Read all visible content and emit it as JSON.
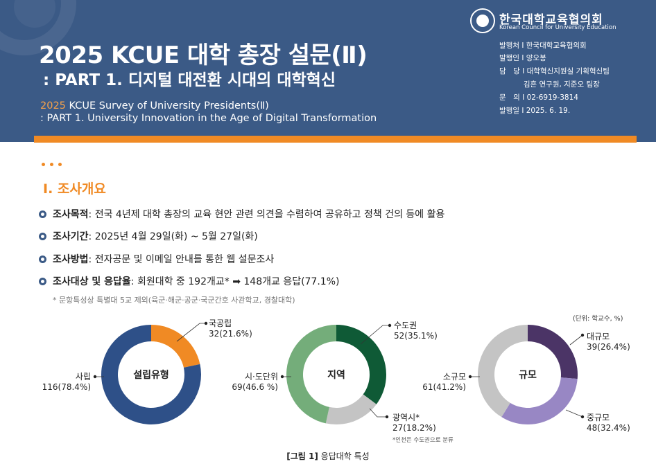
{
  "header": {
    "title_main": "2025 KCUE 대학 총장 설문(Ⅱ)",
    "title_sub": ": PART 1. 디지털 대전환 시대의 대학혁신",
    "en_year": "2025",
    "en_line1_rest": " KCUE Survey of University Presidents(Ⅱ)",
    "en_line2": ": PART 1. University Innovation in the Age of Digital Transformation",
    "org_ko": "한국대학교육협의회",
    "org_en": "Korean Council for University Education",
    "meta": [
      "발행처 I 한국대학교육협의회",
      "발행인 I 양오봉",
      "담　당 I 대학혁신지원실 기획혁신팀",
      "　　　 김흔 연구원, 지준오 팀장",
      "문　의 I 02-6919-3814",
      "발행일 I 2025. 6. 19."
    ]
  },
  "section": {
    "title": "Ⅰ. 조사개요",
    "bullets": [
      {
        "label": "조사목적",
        "text": " : 전국 4년제 대학 총장의 교육 현안 관련 의견을 수렴하여 공유하고 정책 건의 등에 활용"
      },
      {
        "label": "조사기간",
        "text": " : 2025년 4월 29일(화) ~ 5월 27일(화)"
      },
      {
        "label": "조사방법",
        "text": " : 전자공문 및 이메일 안내를 통한 웹 설문조사"
      },
      {
        "label": "조사대상 및 응답율",
        "text": " : 회원대학 중 192개교* ➡ 148개교 응답(77.1%)"
      }
    ],
    "note": "* 문항특성상 특별대 5교 제외(육군·해군·공군·국군간호 사관학교, 경찰대학)"
  },
  "unit_label": "(단위: 학교수, %)",
  "caption_bold": "[그림 1]",
  "caption_text": " 응답대학 특성",
  "incheon_note": "*인천은 수도권으로 분류",
  "colors": {
    "header_bg": "#3b5a86",
    "accent_orange": "#f08a24",
    "navy": "#2e5088",
    "dark_green": "#0f5a36",
    "light_green": "#74ad7a",
    "gray": "#c4c4c4",
    "dark_purple": "#4b3466",
    "light_purple": "#9887c4"
  },
  "chart_data": [
    {
      "type": "pie",
      "title": "설립유형",
      "categories": [
        "국공립",
        "사립"
      ],
      "values": [
        32,
        116
      ],
      "percents": [
        21.6,
        78.4
      ],
      "labels": [
        "32(21.6%)",
        "116(78.4%)"
      ],
      "colors": [
        "#f08a24",
        "#2e5088"
      ]
    },
    {
      "type": "pie",
      "title": "지역",
      "categories": [
        "수도권",
        "광역시*",
        "시·도단위"
      ],
      "values": [
        52,
        27,
        69
      ],
      "percents": [
        35.1,
        18.2,
        46.6
      ],
      "labels": [
        "52(35.1%)",
        "27(18.2%)",
        "69(46.6 %)"
      ],
      "colors": [
        "#0f5a36",
        "#c4c4c4",
        "#74ad7a"
      ]
    },
    {
      "type": "pie",
      "title": "규모",
      "categories": [
        "대규모",
        "중규모",
        "소규모"
      ],
      "values": [
        39,
        48,
        61
      ],
      "percents": [
        26.4,
        32.4,
        41.2
      ],
      "labels": [
        "39(26.4%)",
        "48(32.4%)",
        "61(41.2%)"
      ],
      "colors": [
        "#4b3466",
        "#9887c4",
        "#c4c4c4"
      ]
    }
  ]
}
